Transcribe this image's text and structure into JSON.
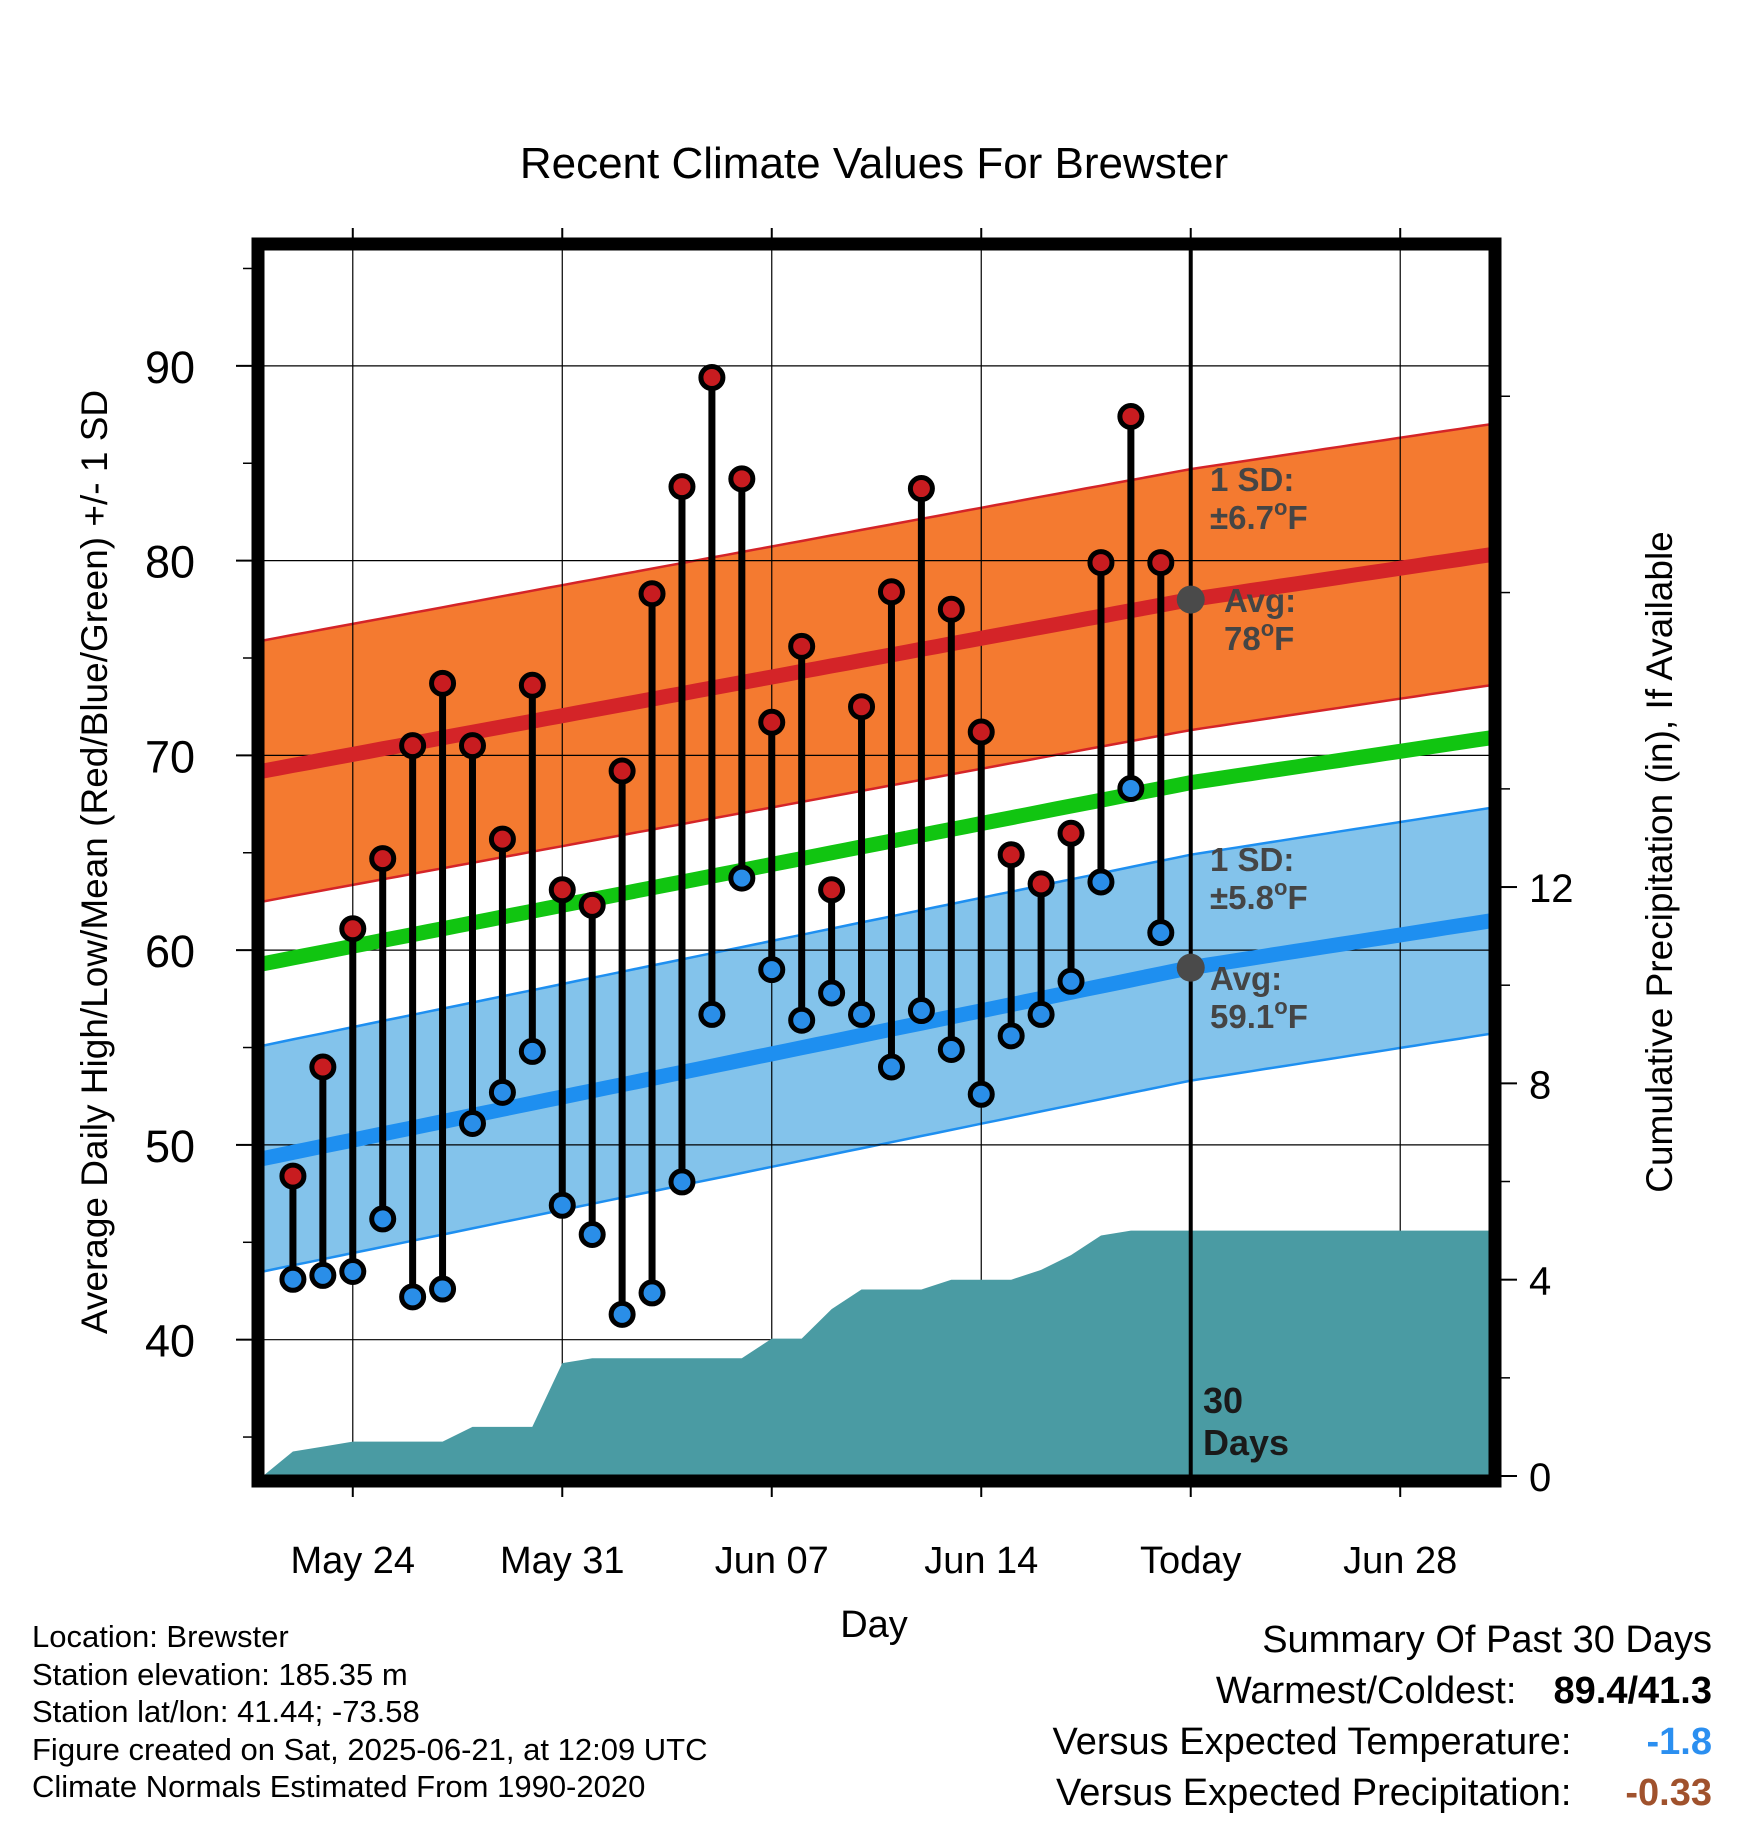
{
  "title": "Recent Climate Values For Brewster",
  "chart_data": {
    "type": "line",
    "title": "Recent Climate Values For Brewster",
    "xlabel": "Day",
    "ylabel": "Average Daily High/Low/Mean (Red/Blue/Green) +/- 1 SD",
    "y2label": "Cumulative Precipitation (in), If Available",
    "xtick_labels": [
      "May 24",
      "May 31",
      "Jun 07",
      "Jun 14",
      "Today",
      "Jun 28"
    ],
    "ytick_labels": [
      "40",
      "50",
      "60",
      "70",
      "80",
      "90"
    ],
    "y2tick_labels": [
      "0",
      "4",
      "8",
      "12"
    ],
    "ylim": [
      33,
      96
    ],
    "y2lim": [
      0,
      25
    ],
    "x_range_days": [
      -31,
      10
    ],
    "grid": true,
    "today_marker": "30 Days",
    "daily_observed": {
      "day_offset": [
        -30,
        -29,
        -28,
        -27,
        -26,
        -25,
        -24,
        -23,
        -22,
        -21,
        -20,
        -19,
        -18,
        -17,
        -16,
        -15,
        -14,
        -13,
        -12,
        -11,
        -10,
        -9,
        -8,
        -7,
        -6,
        -5,
        -4,
        -3,
        -2,
        -1
      ],
      "high": [
        48.4,
        54.0,
        61.1,
        64.7,
        70.5,
        73.7,
        70.5,
        65.7,
        73.6,
        63.1,
        62.3,
        69.2,
        78.3,
        83.8,
        89.4,
        84.2,
        71.7,
        75.6,
        63.1,
        72.5,
        78.4,
        83.7,
        77.5,
        71.2,
        64.9,
        63.4,
        66.0,
        79.9,
        87.4,
        79.9
      ],
      "low": [
        43.1,
        43.3,
        43.5,
        46.2,
        42.2,
        42.6,
        51.1,
        52.7,
        54.8,
        46.9,
        45.4,
        41.3,
        42.4,
        48.1,
        56.7,
        63.7,
        59.0,
        56.4,
        57.8,
        56.7,
        54.0,
        56.9,
        54.9,
        52.6,
        55.6,
        56.7,
        58.4,
        63.5,
        68.3,
        60.9
      ]
    },
    "normal_high": {
      "day_offset": [
        -31,
        0,
        10
      ],
      "values": [
        69.2,
        78.0,
        80.3
      ],
      "sd": 6.7
    },
    "normal_low": {
      "day_offset": [
        -31,
        0,
        10
      ],
      "values": [
        49.3,
        59.1,
        61.5
      ],
      "sd": 5.8
    },
    "normal_mean": {
      "day_offset": [
        -31,
        0,
        10
      ],
      "values": [
        59.3,
        68.6,
        70.9
      ]
    },
    "cumulative_precip": {
      "day_offset": [
        -31,
        -30,
        -29,
        -28,
        -27,
        -26,
        -25,
        -24,
        -23,
        -22,
        -21,
        -20,
        -19,
        -18,
        -17,
        -16,
        -15,
        -14,
        -13,
        -12,
        -11,
        -10,
        -9,
        -8,
        -7,
        -6,
        -5,
        -4,
        -3,
        -2,
        -1,
        0,
        10
      ],
      "values": [
        0.0,
        0.5,
        0.6,
        0.7,
        0.7,
        0.7,
        0.7,
        1.0,
        1.0,
        1.0,
        2.3,
        2.4,
        2.4,
        2.4,
        2.4,
        2.4,
        2.4,
        2.8,
        2.8,
        3.4,
        3.8,
        3.8,
        3.8,
        4.0,
        4.0,
        4.0,
        4.2,
        4.5,
        4.9,
        5.0,
        5.0,
        5.0,
        5.0
      ]
    },
    "annotations": {
      "high_sd": {
        "line1": "1 SD:",
        "line2": "±6.7",
        "unit": "F"
      },
      "high_avg": {
        "line1": "Avg:",
        "line2": "78",
        "unit": "F"
      },
      "low_sd": {
        "line1": "1 SD:",
        "line2": "±5.8",
        "unit": "F"
      },
      "low_avg": {
        "line1": "Avg:",
        "line2": "59.1",
        "unit": "F"
      },
      "today_line1": "30",
      "today_line2": "Days"
    },
    "colors": {
      "high_band": "#f47a30",
      "high_line": "#d42428",
      "low_band": "#83c3eb",
      "low_line": "#1e8ff0",
      "mean_line": "#11c511",
      "precip": "#4a9ba3",
      "annotation": "#454545",
      "high_marker": "#c81c20",
      "low_marker": "#2a8ee8"
    }
  },
  "info": {
    "location": "Location: Brewster",
    "elevation": "Station elevation: 185.35 m",
    "latlon": "Station lat/lon: 41.44; -73.58",
    "created": "Figure created on Sat, 2025-06-21, at 12:09 UTC",
    "normals": "Climate Normals Estimated From 1990-2020"
  },
  "summary": {
    "heading": "Summary Of Past 30 Days",
    "warm_cold_label": "Warmest/Coldest:",
    "warm_cold_value": "89.4/41.3",
    "temp_label": "Versus Expected Temperature:",
    "temp_value": "-1.8",
    "temp_color": "#2b8ff0",
    "precip_label": "Versus Expected Precipitation:",
    "precip_value": "-0.33",
    "precip_color": "#a0522d"
  }
}
